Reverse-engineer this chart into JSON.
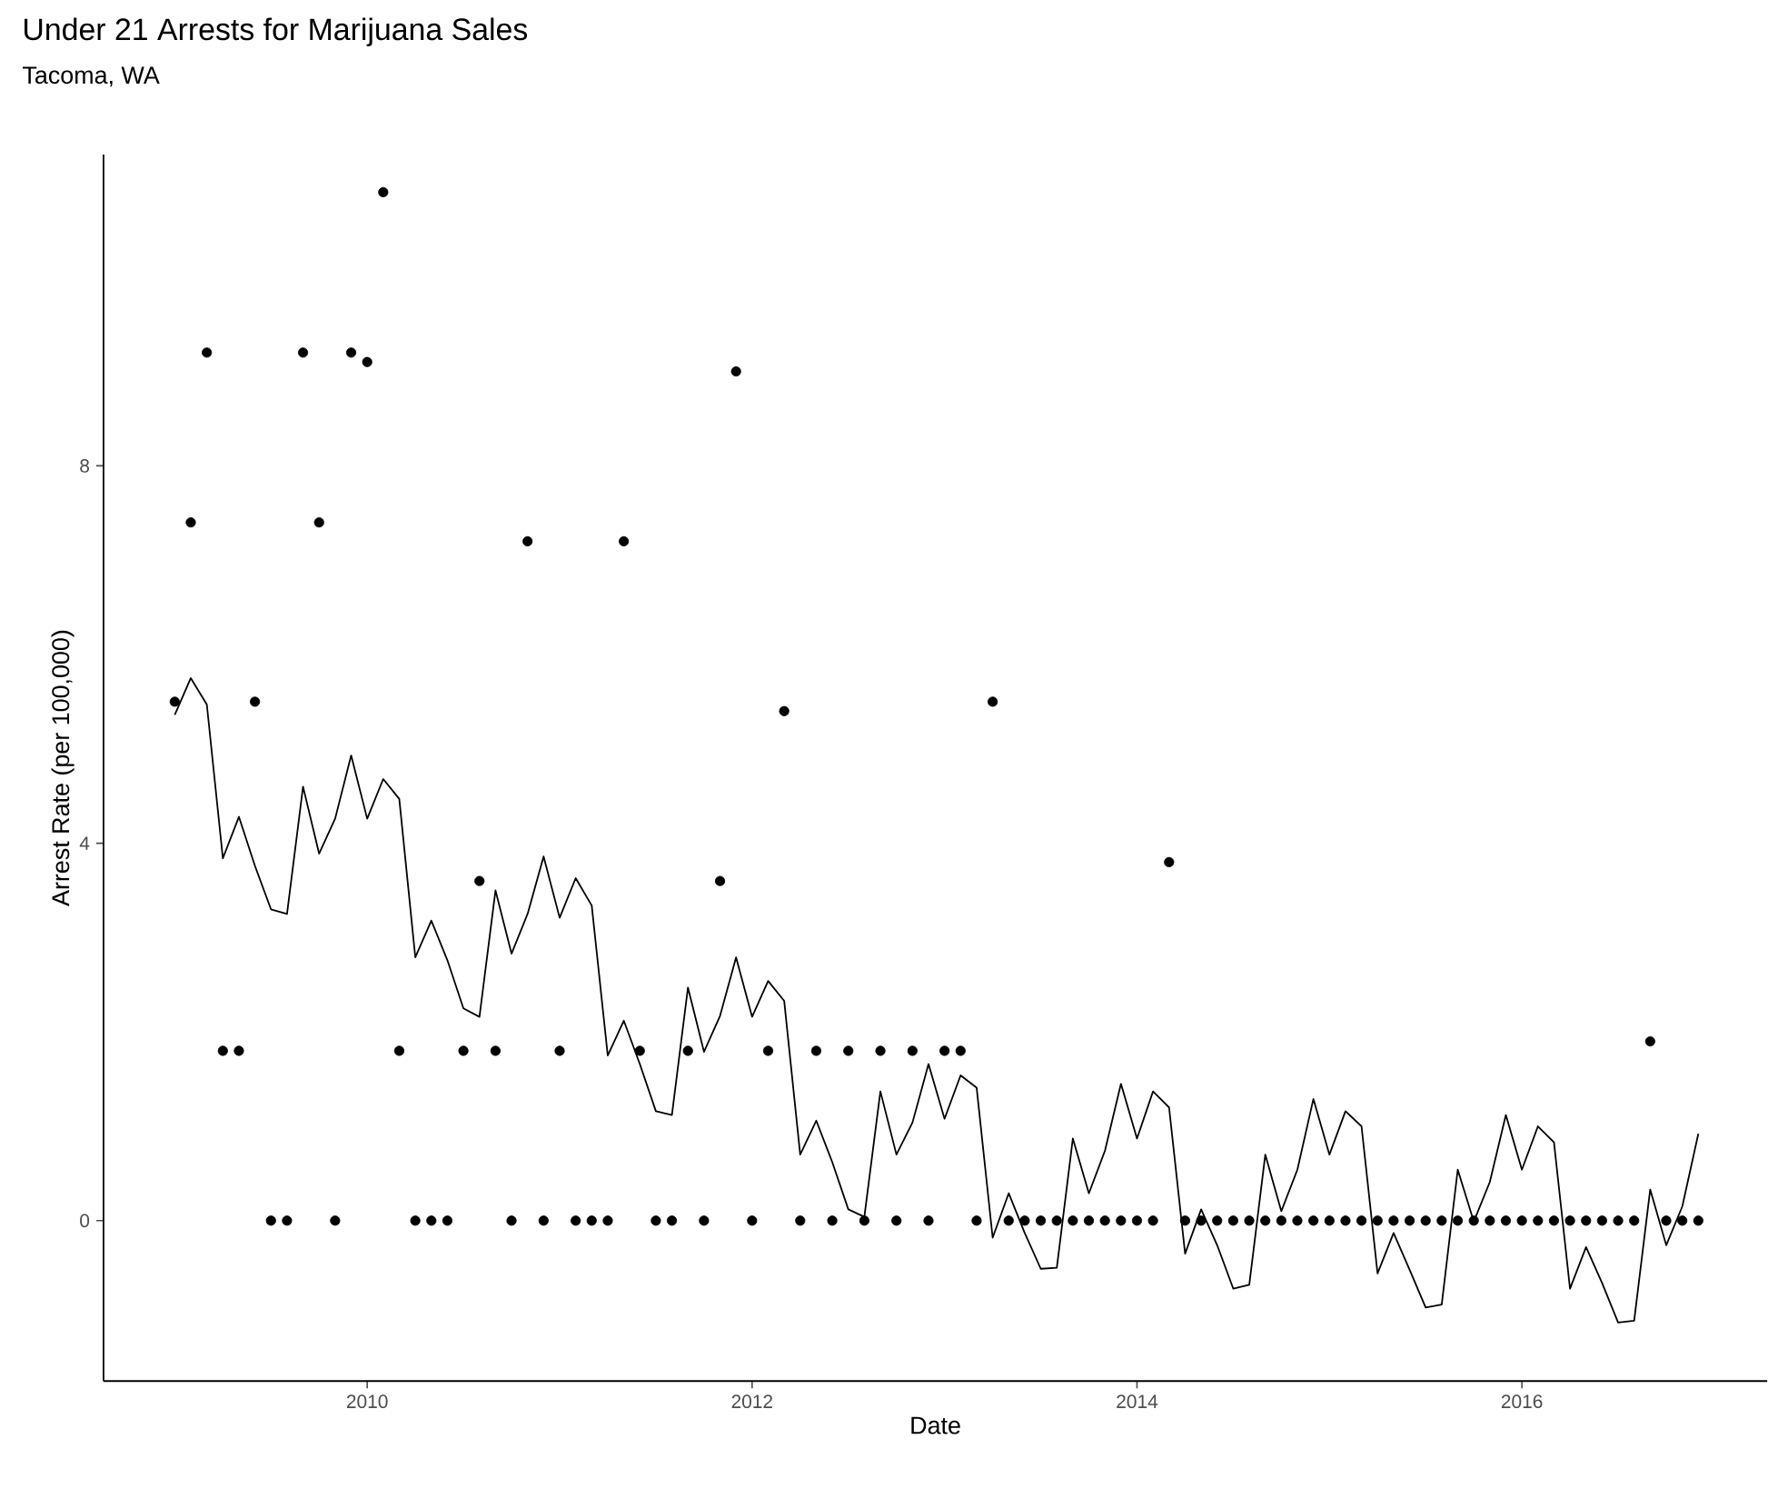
{
  "chart_data": {
    "type": "scatter",
    "title": "Under 21 Arrests for Marijuana Sales",
    "subtitle": "Tacoma, WA",
    "xlabel": "Date",
    "ylabel": "Arrest Rate (per 100,000)",
    "x": [
      "2009-01",
      "2009-02",
      "2009-03",
      "2009-04",
      "2009-05",
      "2009-06",
      "2009-07",
      "2009-08",
      "2009-09",
      "2009-10",
      "2009-11",
      "2009-12",
      "2010-01",
      "2010-02",
      "2010-03",
      "2010-04",
      "2010-05",
      "2010-06",
      "2010-07",
      "2010-08",
      "2010-09",
      "2010-10",
      "2010-11",
      "2010-12",
      "2011-01",
      "2011-02",
      "2011-03",
      "2011-04",
      "2011-05",
      "2011-06",
      "2011-07",
      "2011-08",
      "2011-09",
      "2011-10",
      "2011-11",
      "2011-12",
      "2012-01",
      "2012-02",
      "2012-03",
      "2012-04",
      "2012-05",
      "2012-06",
      "2012-07",
      "2012-08",
      "2012-09",
      "2012-10",
      "2012-11",
      "2012-12",
      "2013-01",
      "2013-02",
      "2013-03",
      "2013-04",
      "2013-05",
      "2013-06",
      "2013-07",
      "2013-08",
      "2013-09",
      "2013-10",
      "2013-11",
      "2013-12",
      "2014-01",
      "2014-02",
      "2014-03",
      "2014-04",
      "2014-05",
      "2014-06",
      "2014-07",
      "2014-08",
      "2014-09",
      "2014-10",
      "2014-11",
      "2014-12",
      "2015-01",
      "2015-02",
      "2015-03",
      "2015-04",
      "2015-05",
      "2015-06",
      "2015-07",
      "2015-08",
      "2015-09",
      "2015-10",
      "2015-11",
      "2015-12",
      "2016-01",
      "2016-02",
      "2016-03",
      "2016-04",
      "2016-05",
      "2016-06",
      "2016-07",
      "2016-08",
      "2016-09",
      "2016-10",
      "2016-11",
      "2016-12"
    ],
    "series": [
      {
        "marker": "circle",
        "color": "#000000",
        "values": [
          5.5,
          7.4,
          9.2,
          1.8,
          1.8,
          5.5,
          0,
          0,
          9.2,
          7.4,
          0,
          9.2,
          9.1,
          10.9,
          1.8,
          0,
          0,
          0,
          1.8,
          3.6,
          1.8,
          0,
          7.2,
          0,
          1.8,
          0,
          0,
          0,
          7.2,
          1.8,
          0,
          0,
          1.8,
          0,
          3.6,
          9.0,
          0,
          1.8,
          5.4,
          0,
          1.8,
          0,
          1.8,
          0,
          1.8,
          0,
          1.8,
          0,
          1.8,
          1.8,
          0,
          5.5,
          0,
          0,
          0,
          0,
          0,
          0,
          0,
          0,
          0,
          0,
          3.8,
          0,
          0,
          0,
          0,
          0,
          0,
          0,
          0,
          0,
          0,
          0,
          0,
          0,
          0,
          0,
          0,
          0,
          0,
          0,
          0,
          0,
          0,
          0,
          0,
          0,
          0,
          0,
          0,
          0,
          1.9,
          0,
          0,
          0
        ]
      },
      {
        "type": "line",
        "marker": "none",
        "color": "#000000",
        "values": [
          5.36,
          5.75,
          5.47,
          3.84,
          4.28,
          3.76,
          3.3,
          3.25,
          4.6,
          3.89,
          4.26,
          4.93,
          4.26,
          4.68,
          4.47,
          2.79,
          3.18,
          2.76,
          2.25,
          2.16,
          3.5,
          2.83,
          3.25,
          3.86,
          3.21,
          3.63,
          3.34,
          1.75,
          2.12,
          1.66,
          1.16,
          1.12,
          2.47,
          1.79,
          2.17,
          2.79,
          2.16,
          2.54,
          2.33,
          0.7,
          1.06,
          0.62,
          0.12,
          0.04,
          1.37,
          0.7,
          1.04,
          1.66,
          1.08,
          1.54,
          1.41,
          -0.18,
          0.29,
          -0.13,
          -0.51,
          -0.5,
          0.87,
          0.29,
          0.74,
          1.45,
          0.87,
          1.37,
          1.2,
          -0.35,
          0.12,
          -0.26,
          -0.72,
          -0.68,
          0.7,
          0.1,
          0.54,
          1.29,
          0.7,
          1.16,
          1.0,
          -0.56,
          -0.13,
          -0.52,
          -0.92,
          -0.89,
          0.54,
          -0.01,
          0.41,
          1.12,
          0.54,
          1.0,
          0.83,
          -0.72,
          -0.28,
          -0.66,
          -1.08,
          -1.06,
          0.33,
          -0.26,
          0.15,
          0.92
        ]
      }
    ],
    "xlim": [
      "2008-08-18",
      "2017-04-10"
    ],
    "xticks": [
      "2010",
      "2012",
      "2014",
      "2016"
    ],
    "ylim": [
      -1.7,
      11.3
    ],
    "yticks": [
      0,
      4,
      8
    ]
  }
}
